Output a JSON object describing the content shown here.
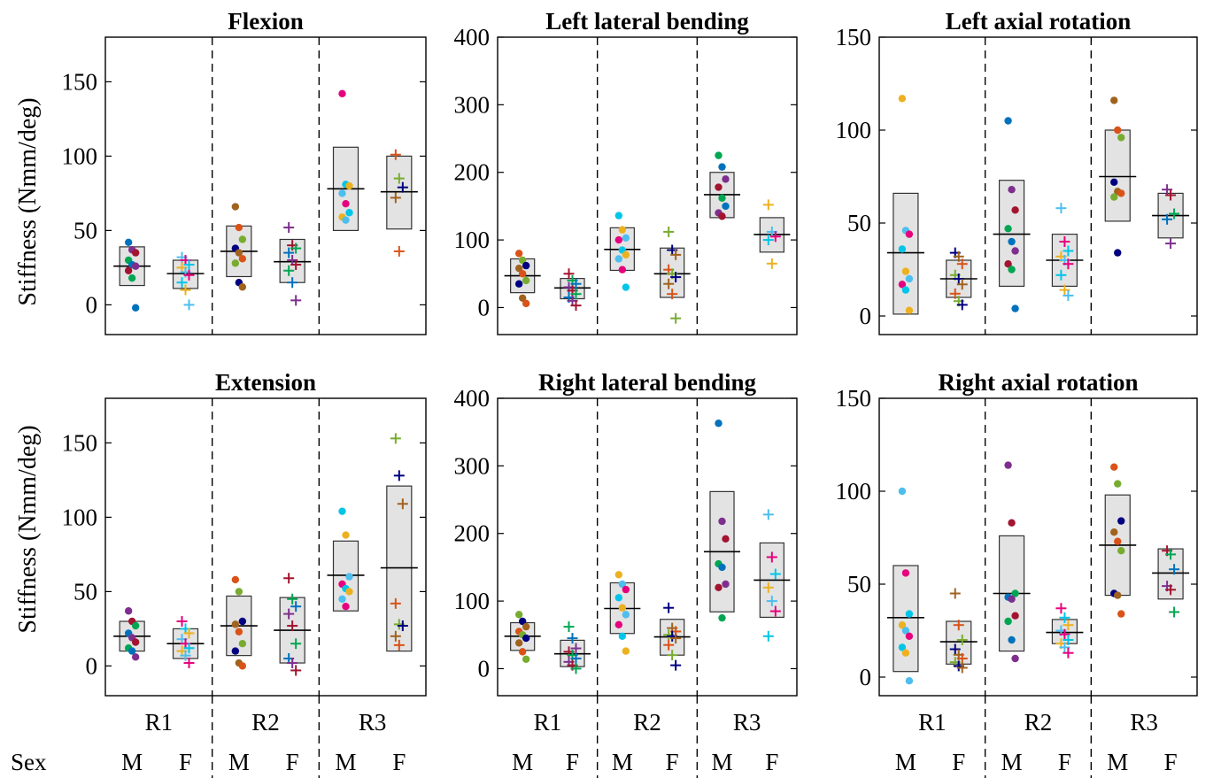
{
  "figure": {
    "ylabel": "Stiffness (Nmm/deg)",
    "sex_label": "Sex",
    "region_labels": [
      "R1",
      "R2",
      "R3"
    ],
    "sex_codes": [
      "M",
      "F"
    ]
  },
  "chart_data": [
    {
      "type": "box-scatter",
      "title": "Flexion",
      "ylim": [
        -20,
        180
      ],
      "yticks": [
        0,
        50,
        100,
        150
      ],
      "groups": [
        {
          "region": "R1",
          "sex": "M",
          "q1": 13,
          "median": 26,
          "q3": 39,
          "points": [
            42,
            37,
            35,
            30,
            27,
            26,
            23,
            18,
            -2
          ]
        },
        {
          "region": "R1",
          "sex": "F",
          "q1": 11,
          "median": 21,
          "q3": 30,
          "points": [
            32,
            30,
            27,
            25,
            22,
            20,
            15,
            10,
            0
          ]
        },
        {
          "region": "R2",
          "sex": "M",
          "q1": 19,
          "median": 36,
          "q3": 53,
          "points": [
            66,
            52,
            44,
            38,
            35,
            31,
            28,
            15,
            12
          ]
        },
        {
          "region": "R2",
          "sex": "F",
          "q1": 15,
          "median": 29,
          "q3": 44,
          "points": [
            52,
            40,
            38,
            35,
            30,
            27,
            23,
            15,
            3
          ]
        },
        {
          "region": "R3",
          "sex": "M",
          "q1": 50,
          "median": 78,
          "q3": 106,
          "points": [
            142,
            81,
            80,
            75,
            68,
            62,
            59,
            57
          ]
        },
        {
          "region": "R3",
          "sex": "F",
          "q1": 51,
          "median": 76,
          "q3": 100,
          "points": [
            101,
            85,
            79,
            72,
            36
          ]
        }
      ]
    },
    {
      "type": "box-scatter",
      "title": "Left lateral bending",
      "ylim": [
        -40,
        400
      ],
      "yticks": [
        0,
        100,
        200,
        300,
        400
      ],
      "groups": [
        {
          "region": "R1",
          "sex": "M",
          "q1": 22,
          "median": 47,
          "q3": 72,
          "points": [
            80,
            70,
            62,
            58,
            50,
            40,
            35,
            14,
            6
          ]
        },
        {
          "region": "R1",
          "sex": "F",
          "q1": 13,
          "median": 29,
          "q3": 43,
          "points": [
            50,
            40,
            35,
            30,
            25,
            20,
            15,
            10,
            3
          ]
        },
        {
          "region": "R2",
          "sex": "M",
          "q1": 55,
          "median": 86,
          "q3": 118,
          "points": [
            136,
            115,
            103,
            100,
            85,
            78,
            72,
            56,
            30
          ]
        },
        {
          "region": "R2",
          "sex": "F",
          "q1": 15,
          "median": 50,
          "q3": 88,
          "points": [
            112,
            85,
            78,
            56,
            50,
            45,
            35,
            20,
            -16
          ]
        },
        {
          "region": "R3",
          "sex": "M",
          "q1": 133,
          "median": 167,
          "q3": 200,
          "points": [
            225,
            208,
            190,
            178,
            162,
            150,
            140,
            135
          ]
        },
        {
          "region": "R3",
          "sex": "F",
          "q1": 82,
          "median": 108,
          "q3": 133,
          "points": [
            152,
            112,
            105,
            100,
            65
          ]
        }
      ]
    },
    {
      "type": "box-scatter",
      "title": "Left axial rotation",
      "ylim": [
        -10,
        150
      ],
      "yticks": [
        0,
        50,
        100,
        150
      ],
      "groups": [
        {
          "region": "R1",
          "sex": "M",
          "q1": 1,
          "median": 34,
          "q3": 66,
          "points": [
            117,
            46,
            44,
            36,
            24,
            20,
            17,
            14,
            3
          ]
        },
        {
          "region": "R1",
          "sex": "F",
          "q1": 10,
          "median": 20,
          "q3": 30,
          "points": [
            34,
            32,
            28,
            22,
            20,
            17,
            12,
            8,
            6
          ]
        },
        {
          "region": "R2",
          "sex": "M",
          "q1": 16,
          "median": 44,
          "q3": 73,
          "points": [
            105,
            68,
            57,
            47,
            40,
            35,
            28,
            25,
            4
          ]
        },
        {
          "region": "R2",
          "sex": "F",
          "q1": 16,
          "median": 30,
          "q3": 44,
          "points": [
            58,
            40,
            35,
            32,
            30,
            28,
            22,
            14,
            11
          ]
        },
        {
          "region": "R3",
          "sex": "M",
          "q1": 51,
          "median": 75,
          "q3": 100,
          "points": [
            116,
            100,
            96,
            72,
            67,
            66,
            64,
            34
          ]
        },
        {
          "region": "R3",
          "sex": "F",
          "q1": 42,
          "median": 54,
          "q3": 66,
          "points": [
            68,
            65,
            55,
            52,
            39
          ]
        }
      ]
    },
    {
      "type": "box-scatter",
      "title": "Extension",
      "ylim": [
        -20,
        180
      ],
      "yticks": [
        0,
        50,
        100,
        150
      ],
      "groups": [
        {
          "region": "R1",
          "sex": "M",
          "q1": 10,
          "median": 20,
          "q3": 30,
          "points": [
            37,
            30,
            27,
            22,
            19,
            16,
            12,
            10,
            6
          ]
        },
        {
          "region": "R1",
          "sex": "F",
          "q1": 5,
          "median": 15,
          "q3": 25,
          "points": [
            30,
            25,
            22,
            18,
            15,
            12,
            10,
            7,
            2
          ]
        },
        {
          "region": "R2",
          "sex": "M",
          "q1": 7,
          "median": 27,
          "q3": 47,
          "points": [
            58,
            50,
            30,
            28,
            23,
            15,
            10,
            2,
            0
          ]
        },
        {
          "region": "R2",
          "sex": "F",
          "q1": 2,
          "median": 24,
          "q3": 46,
          "points": [
            59,
            45,
            40,
            35,
            27,
            15,
            5,
            2,
            -3
          ]
        },
        {
          "region": "R3",
          "sex": "M",
          "q1": 37,
          "median": 61,
          "q3": 84,
          "points": [
            104,
            88,
            60,
            55,
            52,
            50,
            45,
            40
          ]
        },
        {
          "region": "R3",
          "sex": "F",
          "q1": 10,
          "median": 66,
          "q3": 121,
          "points": [
            153,
            128,
            109,
            42,
            28,
            27,
            20,
            14
          ]
        }
      ]
    },
    {
      "type": "box-scatter",
      "title": "Right lateral bending",
      "ylim": [
        -40,
        400
      ],
      "yticks": [
        0,
        100,
        200,
        300,
        400
      ],
      "groups": [
        {
          "region": "R1",
          "sex": "M",
          "q1": 27,
          "median": 48,
          "q3": 68,
          "points": [
            80,
            70,
            62,
            55,
            50,
            45,
            38,
            25,
            14
          ]
        },
        {
          "region": "R1",
          "sex": "F",
          "q1": 3,
          "median": 22,
          "q3": 42,
          "points": [
            62,
            45,
            30,
            25,
            20,
            15,
            10,
            5,
            0
          ]
        },
        {
          "region": "R2",
          "sex": "M",
          "q1": 52,
          "median": 89,
          "q3": 127,
          "points": [
            139,
            125,
            117,
            105,
            90,
            80,
            65,
            48,
            26
          ]
        },
        {
          "region": "R2",
          "sex": "F",
          "q1": 20,
          "median": 47,
          "q3": 73,
          "points": [
            90,
            60,
            55,
            50,
            48,
            45,
            35,
            20,
            5
          ]
        },
        {
          "region": "R3",
          "sex": "M",
          "q1": 84,
          "median": 173,
          "q3": 262,
          "points": [
            363,
            218,
            192,
            155,
            150,
            125,
            120,
            75
          ]
        },
        {
          "region": "R3",
          "sex": "F",
          "q1": 76,
          "median": 131,
          "q3": 186,
          "points": [
            228,
            165,
            140,
            120,
            100,
            85,
            48
          ]
        }
      ]
    },
    {
      "type": "box-scatter",
      "title": "Right axial rotation",
      "ylim": [
        -10,
        150
      ],
      "yticks": [
        0,
        50,
        100,
        150
      ],
      "groups": [
        {
          "region": "R1",
          "sex": "M",
          "q1": 3,
          "median": 32,
          "q3": 60,
          "points": [
            100,
            56,
            34,
            28,
            25,
            22,
            16,
            13,
            -2
          ]
        },
        {
          "region": "R1",
          "sex": "F",
          "q1": 7,
          "median": 19,
          "q3": 30,
          "points": [
            45,
            28,
            20,
            15,
            12,
            10,
            8,
            6,
            5
          ]
        },
        {
          "region": "R2",
          "sex": "M",
          "q1": 14,
          "median": 45,
          "q3": 76,
          "points": [
            114,
            83,
            45,
            43,
            42,
            33,
            30,
            20,
            10
          ]
        },
        {
          "region": "R2",
          "sex": "F",
          "q1": 18,
          "median": 24,
          "q3": 31,
          "points": [
            37,
            32,
            28,
            25,
            23,
            20,
            18,
            16,
            13
          ]
        },
        {
          "region": "R3",
          "sex": "M",
          "q1": 44,
          "median": 71,
          "q3": 98,
          "points": [
            113,
            104,
            84,
            78,
            73,
            68,
            45,
            44,
            34
          ]
        },
        {
          "region": "R3",
          "sex": "F",
          "q1": 42,
          "median": 56,
          "q3": 69,
          "points": [
            68,
            66,
            58,
            49,
            47,
            35
          ]
        }
      ]
    }
  ],
  "specimen_colors": [
    "#0072BD",
    "#D95319",
    "#EDB120",
    "#7E2F8E",
    "#77AC30",
    "#4DBEEE",
    "#A2142F",
    "#000080",
    "#E6007E",
    "#00A651",
    "#A0621D",
    "#00C5E8"
  ]
}
